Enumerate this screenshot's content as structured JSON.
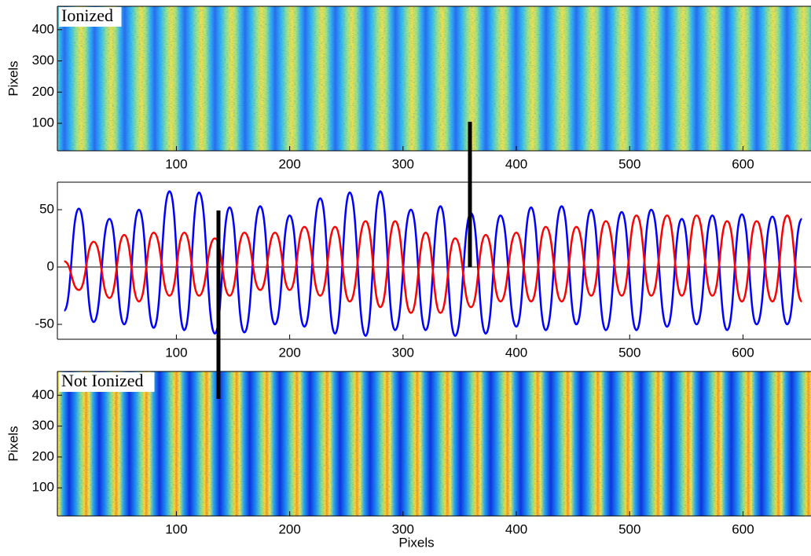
{
  "chart_data": [
    {
      "type": "image",
      "label": "Ionized",
      "ylabel": "Pixels",
      "xlim": [
        -5,
        660
      ],
      "ylim": [
        12,
        475
      ],
      "xticks": [
        100,
        200,
        300,
        400,
        500,
        600
      ],
      "yticks": [
        100,
        200,
        300,
        400
      ]
    },
    {
      "type": "line",
      "xlim": [
        -5,
        660
      ],
      "ylim": [
        -63,
        74
      ],
      "xticks": [
        100,
        200,
        300,
        400,
        500,
        600
      ],
      "yticks": [
        -50,
        0,
        50
      ],
      "reference_line": 0,
      "x": [
        1,
        14,
        27,
        41,
        54,
        67,
        80,
        94,
        107,
        120,
        134,
        147,
        160,
        174,
        187,
        200,
        213,
        227,
        240,
        253,
        267,
        280,
        293,
        307,
        320,
        333,
        346,
        360,
        373,
        386,
        400,
        413,
        426,
        440,
        453,
        466,
        479,
        493,
        506,
        519,
        533,
        546,
        559,
        573,
        586,
        599,
        612,
        626,
        639,
        652
      ],
      "series": [
        {
          "color": "#0000ff",
          "values": [
            -38,
            51,
            -48,
            42,
            -50,
            50,
            -53,
            66,
            -55,
            65,
            -58,
            52,
            -57,
            53,
            -50,
            45,
            -52,
            60,
            -58,
            65,
            -60,
            66,
            -55,
            50,
            -55,
            53,
            -60,
            47,
            -58,
            45,
            -52,
            52,
            -55,
            53,
            -50,
            50,
            -55,
            48,
            -55,
            50,
            -52,
            42,
            -50,
            45,
            -55,
            46,
            -50,
            44,
            -50,
            42
          ]
        },
        {
          "color": "#ff0000",
          "values": [
            5,
            -20,
            22,
            -27,
            28,
            -30,
            30,
            -25,
            30,
            -25,
            25,
            -25,
            30,
            -20,
            30,
            -20,
            35,
            -25,
            35,
            -30,
            40,
            -35,
            40,
            -40,
            30,
            -40,
            25,
            -35,
            28,
            -30,
            30,
            -30,
            35,
            -30,
            35,
            -25,
            40,
            -25,
            45,
            -25,
            45,
            -25,
            45,
            -25,
            40,
            -30,
            40,
            -30,
            45,
            -30
          ]
        }
      ]
    },
    {
      "type": "image",
      "label": "Not Ionized",
      "ylabel": "Pixels",
      "xlabel": "Pixels",
      "xlim": [
        -5,
        660
      ],
      "ylim": [
        9,
        477
      ],
      "xticks": [
        100,
        200,
        300,
        400,
        500,
        600
      ],
      "yticks": [
        100,
        200,
        300,
        400
      ]
    }
  ]
}
